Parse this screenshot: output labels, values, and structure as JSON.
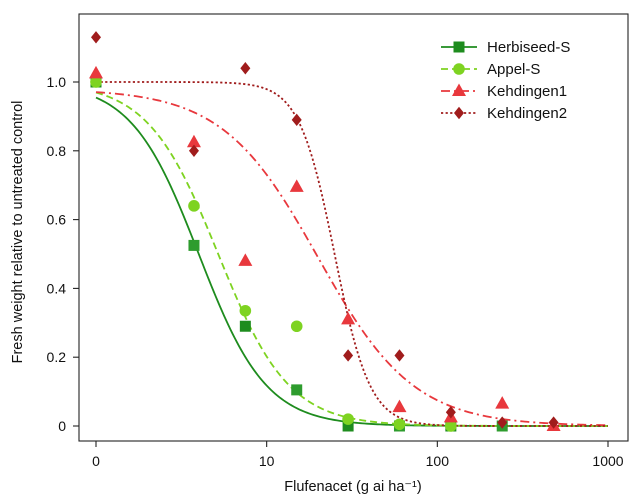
{
  "chart_data": {
    "type": "scatter",
    "xlabel": "Flufenacet (g ai ha⁻¹)",
    "ylabel": "Fresh weight relative to untreated control",
    "xscale": "log",
    "xlim": [
      1,
      1000
    ],
    "ylim": [
      -0.02,
      1.2
    ],
    "x_ticks": [
      {
        "value": 1,
        "label": "0"
      },
      {
        "value": 10,
        "label": "10"
      },
      {
        "value": 100,
        "label": "100"
      },
      {
        "value": 1000,
        "label": "1000"
      }
    ],
    "y_ticks": [
      {
        "value": 0,
        "label": "0"
      },
      {
        "value": 0.2,
        "label": "0.2"
      },
      {
        "value": 0.4,
        "label": "0.4"
      },
      {
        "value": 0.6,
        "label": "0.6"
      },
      {
        "value": 0.8,
        "label": "0.8"
      },
      {
        "value": 1.0,
        "label": "1.0"
      }
    ],
    "grid": false,
    "legend_position": "top-right",
    "series": [
      {
        "name": "Herbiseed-S",
        "color": "#1e8c1e",
        "point_colors": [
          "#1e8c1e",
          "#2e9c2e"
        ],
        "marker": "square",
        "line": "solid",
        "x": [
          1,
          3.75,
          7.5,
          15,
          30,
          60,
          120,
          240
        ],
        "y": [
          1.0,
          0.525,
          0.29,
          0.105,
          0.0,
          0.0,
          0.0,
          0.0
        ],
        "curve": {
          "top": 1.0,
          "ed50": 4.0,
          "slope": 2.2
        }
      },
      {
        "name": "Appel-S",
        "color": "#7ed321",
        "point_colors": [
          "#7ed321"
        ],
        "marker": "circle",
        "line": "dashed",
        "x": [
          1,
          3.75,
          7.5,
          15,
          30,
          60,
          120
        ],
        "y": [
          1.0,
          0.64,
          0.335,
          0.29,
          0.02,
          0.005,
          0.0
        ],
        "curve": {
          "top": 1.0,
          "ed50": 5.2,
          "slope": 2.1
        }
      },
      {
        "name": "Kehdingen1",
        "color": "#e8383d",
        "point_colors": [
          "#e8383d"
        ],
        "marker": "triangle",
        "line": "dashdot",
        "x": [
          1,
          3.75,
          7.5,
          15,
          30,
          60,
          120,
          240,
          480
        ],
        "y": [
          1.025,
          0.825,
          0.48,
          0.695,
          0.31,
          0.055,
          0.025,
          0.065,
          0.0
        ],
        "curve": {
          "top": 0.98,
          "ed50": 20.0,
          "slope": 1.55
        }
      },
      {
        "name": "Kehdingen2",
        "color": "#a01c1c",
        "point_colors": [
          "#a01c1c"
        ],
        "marker": "diamond",
        "line": "dotted",
        "x": [
          1,
          3.75,
          7.5,
          15,
          30,
          60,
          120,
          240,
          480
        ],
        "y": [
          1.13,
          0.8,
          1.04,
          0.89,
          0.205,
          0.205,
          0.04,
          0.01,
          0.01
        ],
        "curve": {
          "top": 1.0,
          "ed50": 25.0,
          "slope": 4.2
        }
      }
    ]
  }
}
